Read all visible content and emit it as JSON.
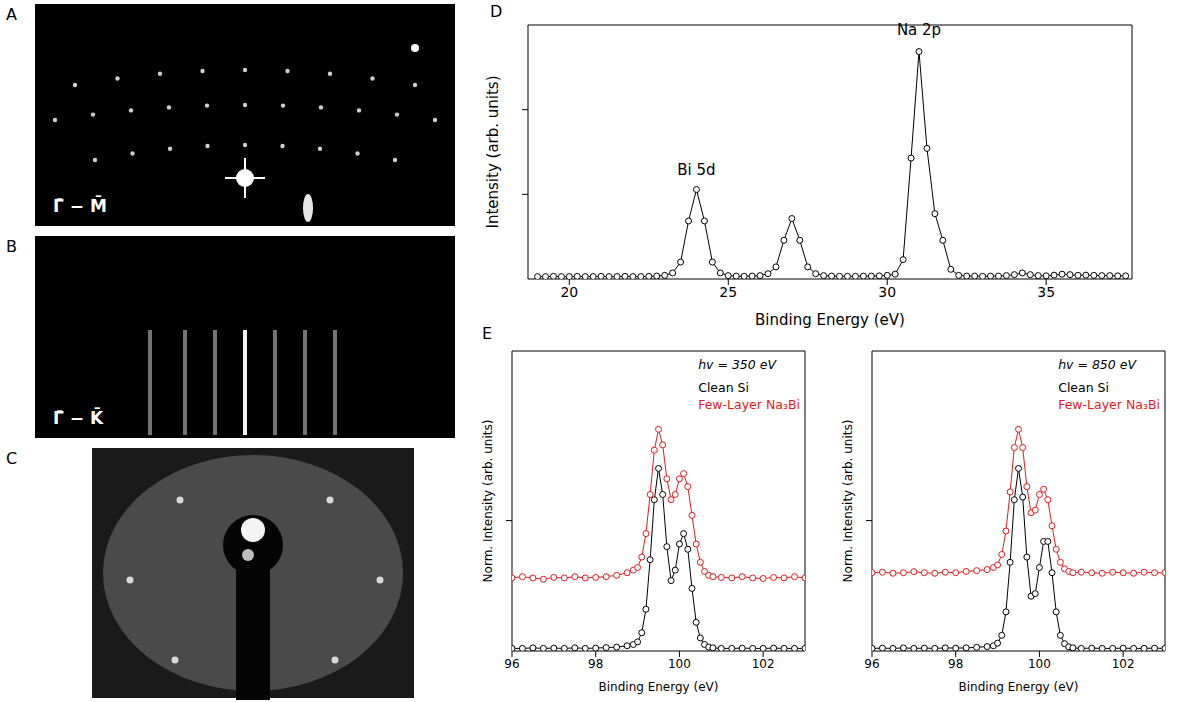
{
  "images": [
    {
      "panel": "A",
      "label": "Γ̄ − M̄"
    },
    {
      "panel": "B",
      "label": "Γ̄ − K̄"
    },
    {
      "panel": "C"
    }
  ],
  "chart_data": [
    {
      "panel": "D",
      "type": "line",
      "x_label": "Binding Energy (eV)",
      "y_label": "Intensity (arb. units)",
      "x": [
        19,
        19.25,
        19.5,
        19.75,
        20,
        20.25,
        20.5,
        20.75,
        21,
        21.25,
        21.5,
        21.75,
        22,
        22.25,
        22.5,
        22.75,
        23,
        23.25,
        23.5,
        23.75,
        24,
        24.25,
        24.5,
        24.75,
        25,
        25.25,
        25.5,
        25.75,
        26,
        26.25,
        26.5,
        26.75,
        27,
        27.25,
        27.5,
        27.75,
        28,
        28.25,
        28.5,
        28.75,
        29,
        29.25,
        29.5,
        29.75,
        30,
        30.25,
        30.5,
        30.75,
        31,
        31.25,
        31.5,
        31.75,
        32,
        32.25,
        32.5,
        32.75,
        33,
        33.25,
        33.5,
        33.75,
        34,
        34.25,
        34.5,
        34.75,
        35,
        35.25,
        35.5,
        35.75,
        36,
        36.25,
        36.5,
        36.75,
        37,
        37.25,
        37.5
      ],
      "values": [
        0.01,
        0.01,
        0.011,
        0.01,
        0.01,
        0.011,
        0.01,
        0.01,
        0.011,
        0.01,
        0.01,
        0.011,
        0.01,
        0.01,
        0.011,
        0.012,
        0.015,
        0.025,
        0.07,
        0.24,
        0.37,
        0.24,
        0.07,
        0.025,
        0.014,
        0.012,
        0.011,
        0.012,
        0.014,
        0.022,
        0.05,
        0.16,
        0.25,
        0.16,
        0.05,
        0.022,
        0.014,
        0.012,
        0.011,
        0.011,
        0.011,
        0.012,
        0.012,
        0.013,
        0.015,
        0.02,
        0.08,
        0.5,
        0.94,
        0.54,
        0.27,
        0.16,
        0.04,
        0.015,
        0.012,
        0.012,
        0.011,
        0.012,
        0.012,
        0.014,
        0.018,
        0.025,
        0.018,
        0.014,
        0.013,
        0.016,
        0.02,
        0.018,
        0.015,
        0.016,
        0.015,
        0.014,
        0.014,
        0.013,
        0.013
      ],
      "color": "#000000",
      "marker": "circle",
      "line_style": "solid",
      "xlim": [
        18.7,
        37.7
      ],
      "xticks": [
        20,
        25,
        30,
        35
      ],
      "ylim": [
        0,
        1.05
      ],
      "yticks": [
        0.35,
        0.7
      ],
      "tick_labels": "x",
      "grid": false,
      "annotations": [
        {
          "text": "Bi 5d",
          "x": 24.0,
          "y": 0.41
        },
        {
          "text": "Na 2p",
          "x": 31.0,
          "y": 0.99
        }
      ]
    },
    {
      "panel": "E",
      "type": "line",
      "annotation": "hv = 350 eV",
      "x_label": "Binding Energy (eV)",
      "y_label": "Norm. Intensity (arb. units)",
      "x": [
        96,
        96.25,
        96.5,
        96.75,
        97,
        97.25,
        97.5,
        97.75,
        98,
        98.25,
        98.5,
        98.75,
        98.9,
        99.0,
        99.1,
        99.2,
        99.3,
        99.4,
        99.5,
        99.6,
        99.7,
        99.8,
        99.9,
        100.0,
        100.1,
        100.2,
        100.3,
        100.4,
        100.5,
        100.6,
        100.7,
        100.8,
        101,
        101.25,
        101.5,
        101.75,
        102,
        102.25,
        102.5,
        102.75,
        103
      ],
      "series": [
        {
          "name": "Clean Si",
          "color": "#000000",
          "values": [
            0.01,
            0.01,
            0.012,
            0.01,
            0.011,
            0.01,
            0.012,
            0.01,
            0.011,
            0.013,
            0.015,
            0.02,
            0.025,
            0.035,
            0.07,
            0.16,
            0.35,
            0.58,
            0.7,
            0.6,
            0.4,
            0.27,
            0.31,
            0.41,
            0.45,
            0.39,
            0.24,
            0.11,
            0.05,
            0.025,
            0.015,
            0.012,
            0.01,
            0.01,
            0.011,
            0.01,
            0.01,
            0.011,
            0.01,
            0.01,
            0.01
          ]
        },
        {
          "name": "Few-Layer Na₃Bi",
          "color": "#e41a1c",
          "values": [
            0.28,
            0.285,
            0.28,
            0.275,
            0.282,
            0.28,
            0.285,
            0.28,
            0.282,
            0.285,
            0.29,
            0.3,
            0.31,
            0.32,
            0.36,
            0.45,
            0.6,
            0.77,
            0.85,
            0.79,
            0.66,
            0.58,
            0.6,
            0.66,
            0.68,
            0.63,
            0.52,
            0.41,
            0.34,
            0.305,
            0.29,
            0.285,
            0.282,
            0.28,
            0.285,
            0.28,
            0.278,
            0.282,
            0.28,
            0.285,
            0.28
          ]
        }
      ],
      "marker": "circle",
      "line_style": "solid",
      "legend": "upper right",
      "xlim": [
        96,
        103
      ],
      "xticks": [
        96,
        98,
        100,
        102
      ],
      "ylim": [
        0,
        1.15
      ],
      "yticks": [
        0.5
      ],
      "tick_labels": "x",
      "grid": false
    },
    {
      "type": "line",
      "annotation": "hv = 850 eV",
      "x_label": "Binding Energy (eV)",
      "y_label": "Norm. Intensity (arb. units)",
      "x": [
        96,
        96.25,
        96.5,
        96.75,
        97,
        97.25,
        97.5,
        97.75,
        98,
        98.25,
        98.5,
        98.75,
        98.9,
        99.0,
        99.1,
        99.2,
        99.3,
        99.4,
        99.5,
        99.6,
        99.7,
        99.8,
        99.9,
        100.0,
        100.1,
        100.2,
        100.3,
        100.4,
        100.5,
        100.6,
        100.7,
        100.8,
        101,
        101.25,
        101.5,
        101.75,
        102,
        102.25,
        102.5,
        102.75,
        103
      ],
      "series": [
        {
          "name": "Clean Si",
          "color": "#000000",
          "values": [
            0.01,
            0.011,
            0.01,
            0.012,
            0.01,
            0.011,
            0.01,
            0.012,
            0.011,
            0.012,
            0.014,
            0.017,
            0.02,
            0.03,
            0.06,
            0.15,
            0.34,
            0.58,
            0.7,
            0.59,
            0.36,
            0.21,
            0.22,
            0.32,
            0.42,
            0.42,
            0.3,
            0.15,
            0.06,
            0.028,
            0.016,
            0.012,
            0.01,
            0.011,
            0.01,
            0.01,
            0.011,
            0.01,
            0.01,
            0.011,
            0.01
          ]
        },
        {
          "name": "Few-Layer Na₃Bi",
          "color": "#e41a1c",
          "values": [
            0.3,
            0.302,
            0.298,
            0.3,
            0.304,
            0.3,
            0.298,
            0.302,
            0.3,
            0.305,
            0.308,
            0.312,
            0.32,
            0.33,
            0.37,
            0.46,
            0.61,
            0.78,
            0.85,
            0.78,
            0.63,
            0.53,
            0.54,
            0.6,
            0.62,
            0.58,
            0.48,
            0.39,
            0.34,
            0.315,
            0.305,
            0.3,
            0.302,
            0.3,
            0.298,
            0.302,
            0.3,
            0.298,
            0.302,
            0.3,
            0.3
          ]
        }
      ],
      "marker": "circle",
      "line_style": "solid",
      "legend": "upper right",
      "xlim": [
        96,
        103
      ],
      "xticks": [
        96,
        98,
        100,
        102
      ],
      "ylim": [
        0,
        1.15
      ],
      "yticks": [
        0.5
      ],
      "tick_labels": "x",
      "grid": false
    }
  ]
}
